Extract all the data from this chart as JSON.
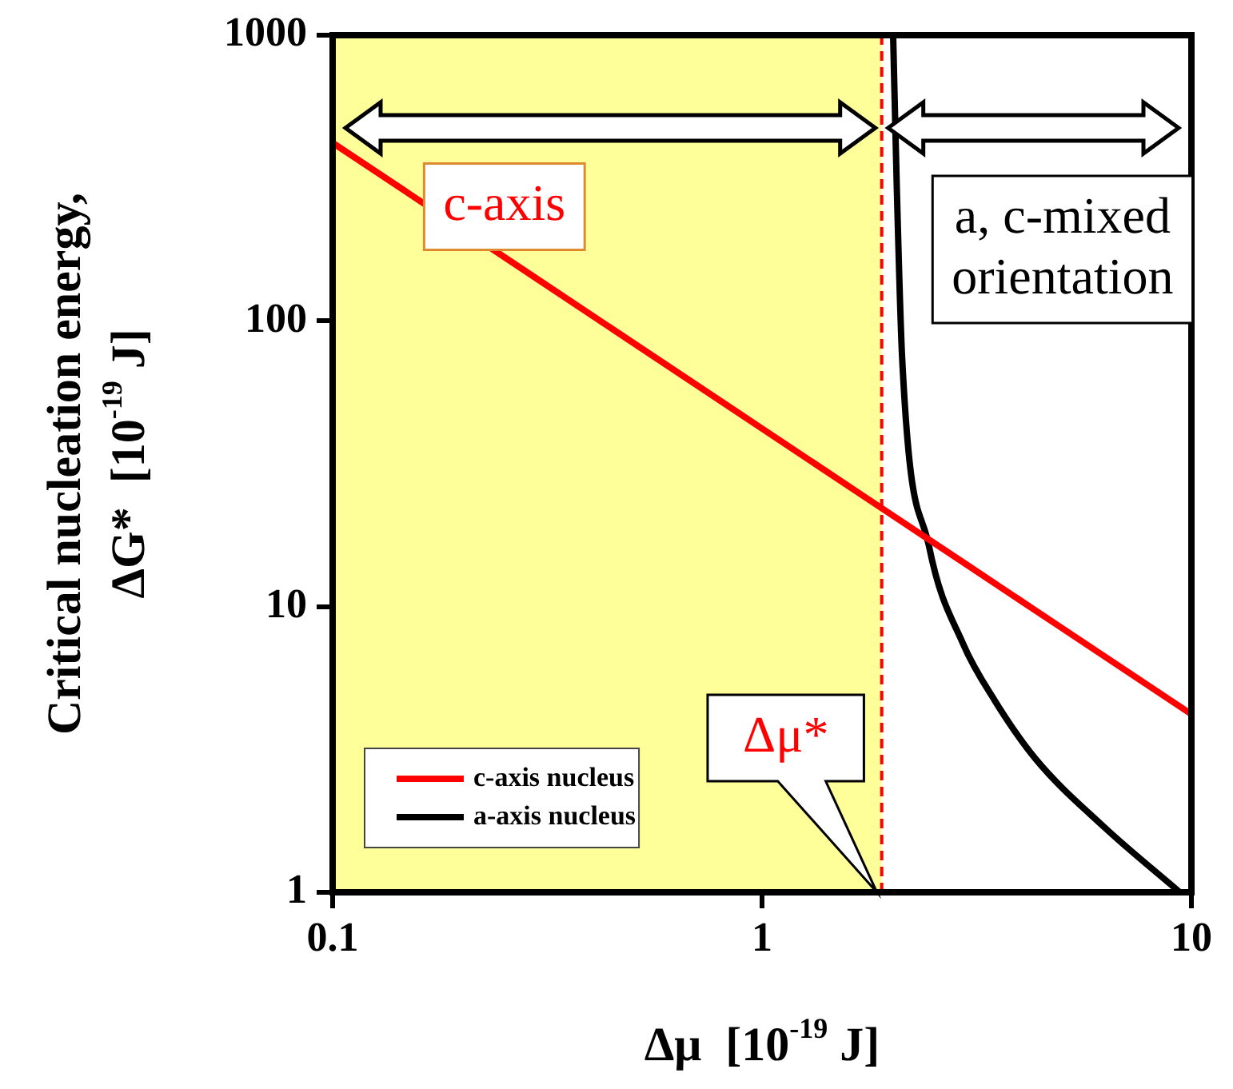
{
  "chart_data": {
    "type": "line",
    "xlabel": "Δμ  [10$^{-19}$ J]",
    "ylabel": "Critical nucleation energy,\nΔG*  [10$^{-19}$ J]",
    "log": "xy",
    "xlim": [
      0.1,
      10
    ],
    "ylim": [
      1,
      1000
    ],
    "xticks": [
      0.1,
      1,
      10
    ],
    "yticks": [
      1,
      10,
      100,
      1000
    ],
    "grid": false,
    "legend": "bottom left",
    "series": [
      {
        "name": "c-axis nucleus",
        "color": "#ff0000",
        "x": [
          0.1,
          0.3,
          1,
          3,
          10
        ],
        "values": [
          420,
          140,
          42,
          14,
          4.2
        ]
      },
      {
        "name": "a-axis nucleus",
        "color": "#000000",
        "x": [
          2.02,
          2.06,
          2.12,
          2.45,
          2.94,
          3.48,
          4.32,
          6.24,
          9.4
        ],
        "values": [
          1000,
          293,
          74,
          16.2,
          7.4,
          4.7,
          2.95,
          1.7,
          1
        ]
      }
    ],
    "bands": [
      {
        "axis": "x",
        "from": 0.1,
        "to": 1.9,
        "color": "#ffff99"
      }
    ],
    "ref_lines": [
      {
        "axis": "x",
        "value": 1.9,
        "color": "#ff0000",
        "line_style": "dashed"
      }
    ],
    "annotations": [
      "c-axis",
      "a, c-mixed orientation",
      {
        "text": "Δμ*",
        "x": 1.9,
        "y": 1
      }
    ]
  }
}
